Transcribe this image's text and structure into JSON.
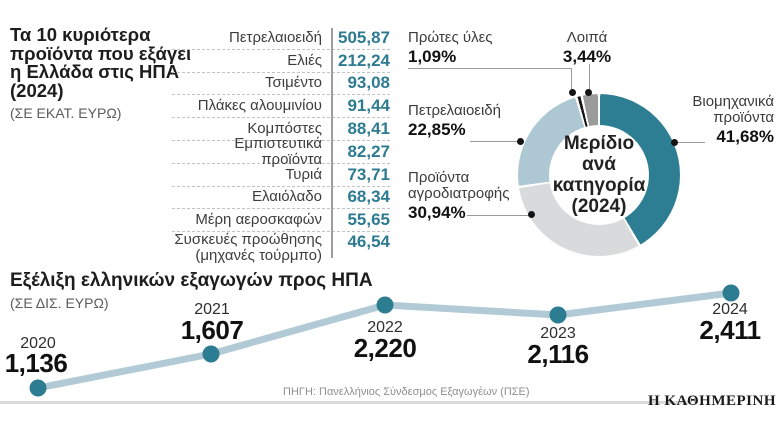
{
  "header": {
    "title": "Τα 10 κυριότερα\nπροϊόντα που εξάγει\nη Ελλάδα στις ΗΠΑ\n(2024)",
    "unit": "(ΣΕ ΕΚΑΤ. ΕΥΡΩ)"
  },
  "line_section": {
    "title": "Εξέλιξη ελληνικών εξαγωγών προς ΗΠΑ",
    "unit": "(ΣΕ ΔΙΣ. ΕΥΡΩ)"
  },
  "footer": {
    "source": "ΠΗΓΗ: Πανελλήνιος Σύνδεσμος Εξαγωγέων (ΠΣΕ)",
    "logo": "Η ΚΑΘΗΜΕΡΙΝΗ"
  },
  "chart_data": [
    {
      "type": "pie",
      "donut": true,
      "center_label": "Μερίδιο\nανά\nκατηγορία\n(2024)",
      "legend_position": "around",
      "segments": [
        {
          "label": "Βιομηχανικά προϊόντα",
          "value": 41.68,
          "display": "41,68%",
          "color": "#2d7e93"
        },
        {
          "label": "Προϊόντα αγροδιατροφής",
          "value": 30.94,
          "display": "30,94%",
          "color": "#d8dadb"
        },
        {
          "label": "Πετρελαιοειδή",
          "value": 22.85,
          "display": "22,85%",
          "color": "#adc8d3"
        },
        {
          "label": "Πρώτες ύλες",
          "value": 1.09,
          "display": "1,09%",
          "color": "#161616"
        },
        {
          "label": "Λοιπά",
          "value": 3.44,
          "display": "3,44%",
          "color": "#9b9b9b"
        }
      ]
    },
    {
      "type": "line",
      "title": "Εξέλιξη ελληνικών εξαγωγών προς ΗΠΑ",
      "ylabel": "ΣΕ ΔΙΣ. ΕΥΡΩ",
      "x": [
        "2020",
        "2021",
        "2022",
        "2023",
        "2024"
      ],
      "values": [
        1.136,
        1.607,
        2.22,
        2.116,
        2.411
      ],
      "display_values": [
        "1,136",
        "1,607",
        "2,220",
        "2,116",
        "2,411"
      ],
      "line_color": "#b2cad5",
      "dot_color": "#2c7d92",
      "grid": false
    },
    {
      "type": "table",
      "title": "Τα 10 κυριότερα προϊόντα που εξάγει η Ελλάδα στις ΗΠΑ (2024)",
      "unit": "ΣΕ ΕΚΑΤ. ΕΥΡΩ",
      "rows": [
        {
          "label": "Πετρελαιοειδή",
          "value": "505,87"
        },
        {
          "label": "Ελιές",
          "value": "212,24"
        },
        {
          "label": "Τσιμέντο",
          "value": "93,08"
        },
        {
          "label": "Πλάκες αλουμινίου",
          "value": "91,44"
        },
        {
          "label": "Κομπόστες",
          "value": "88,41"
        },
        {
          "label": "Εμπιστευτικά προϊόντα",
          "value": "82,27"
        },
        {
          "label": "Τυριά",
          "value": "73,71"
        },
        {
          "label": "Ελαιόλαδο",
          "value": "68,34"
        },
        {
          "label": "Μέρη αεροσκαφών",
          "value": "55,65"
        },
        {
          "label": "Συσκευές προώθησης",
          "label2": "(μηχανές τούρμπο)",
          "value": "46,54"
        }
      ]
    }
  ]
}
